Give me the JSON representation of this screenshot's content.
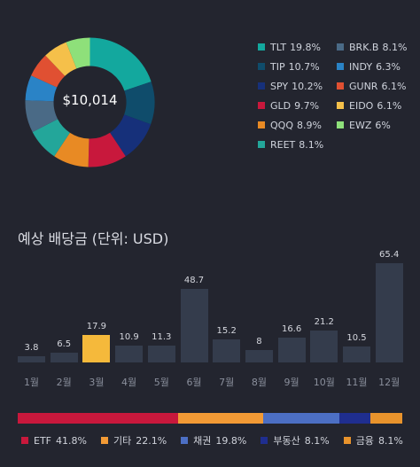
{
  "portfolio": {
    "total": "$10,014",
    "holdings": [
      {
        "ticker": "TLT",
        "pct_label": "19.8%",
        "pct": 19.8,
        "color": "#13a89e"
      },
      {
        "ticker": "TIP",
        "pct_label": "10.7%",
        "pct": 10.7,
        "color": "#0f4c6b"
      },
      {
        "ticker": "SPY",
        "pct_label": "10.2%",
        "pct": 10.2,
        "color": "#16307a"
      },
      {
        "ticker": "GLD",
        "pct_label": "9.7%",
        "pct": 9.7,
        "color": "#c8183c"
      },
      {
        "ticker": "QQQ",
        "pct_label": "8.9%",
        "pct": 8.9,
        "color": "#e88a24"
      },
      {
        "ticker": "REET",
        "pct_label": "8.1%",
        "pct": 8.1,
        "color": "#23a69a"
      },
      {
        "ticker": "BRK.B",
        "pct_label": "8.1%",
        "pct": 8.1,
        "color": "#4a6a86"
      },
      {
        "ticker": "INDY",
        "pct_label": "6.3%",
        "pct": 6.3,
        "color": "#2a83c6"
      },
      {
        "ticker": "GUNR",
        "pct_label": "6.1%",
        "pct": 6.1,
        "color": "#e05032"
      },
      {
        "ticker": "EIDO",
        "pct_label": "6.1%",
        "pct": 6.1,
        "color": "#f5c04a"
      },
      {
        "ticker": "EWZ",
        "pct_label": "6%",
        "pct": 6.0,
        "color": "#8ee07a"
      }
    ]
  },
  "dividends": {
    "title": "예상 배당금 (단위: USD)",
    "highlight_index": 2
  },
  "chart_data": {
    "type": "bar",
    "categories": [
      "1월",
      "2월",
      "3월",
      "4월",
      "5월",
      "6월",
      "7월",
      "8월",
      "9월",
      "10월",
      "11월",
      "12월"
    ],
    "values": [
      3.8,
      6.5,
      17.9,
      10.9,
      11.3,
      48.7,
      15.2,
      8,
      16.6,
      21.2,
      10.5,
      65.4
    ],
    "value_labels": [
      "3.8",
      "6.5",
      "17.9",
      "10.9",
      "11.3",
      "48.7",
      "15.2",
      "8",
      "16.6",
      "21.2",
      "10.5",
      "65.4"
    ],
    "ylim": [
      0,
      65.4
    ]
  },
  "asset_classes": [
    {
      "name": "ETF",
      "pct_label": "41.8%",
      "pct": 41.8,
      "color": "#c8183c"
    },
    {
      "name": "기타",
      "pct_label": "22.1%",
      "pct": 22.1,
      "color": "#f29a35"
    },
    {
      "name": "채권",
      "pct_label": "19.8%",
      "pct": 19.8,
      "color": "#4c6fc4"
    },
    {
      "name": "부동산",
      "pct_label": "8.1%",
      "pct": 8.1,
      "color": "#1f2e8f"
    },
    {
      "name": "금융",
      "pct_label": "8.1%",
      "pct": 8.1,
      "color": "#e8932c"
    }
  ]
}
